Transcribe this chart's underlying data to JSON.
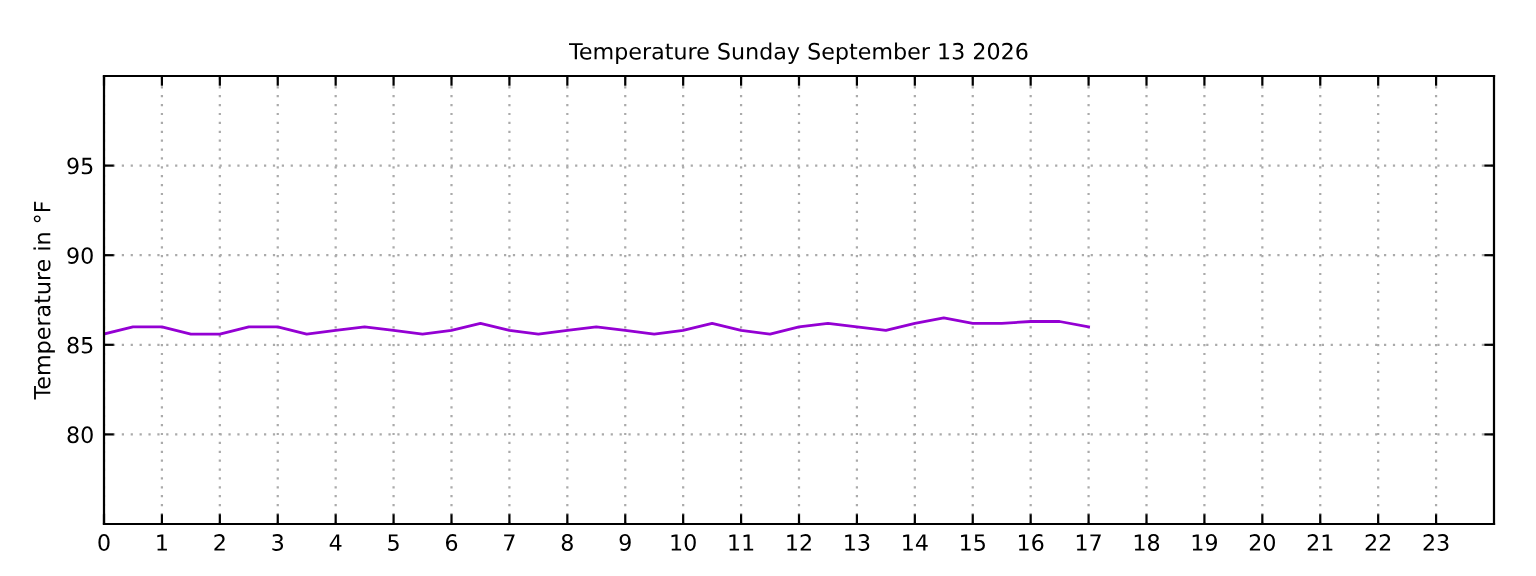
{
  "chart_data": {
    "type": "line",
    "title": "Temperature Sunday September 13 2026",
    "ylabel": "Temperature in °F",
    "x": [
      0,
      0.5,
      1,
      1.5,
      2,
      2.5,
      3,
      3.5,
      4,
      4.5,
      5,
      5.5,
      6,
      6.5,
      7,
      7.5,
      8,
      8.5,
      9,
      9.5,
      10,
      10.5,
      11,
      11.5,
      12,
      12.5,
      13,
      13.5,
      14,
      14.5,
      15,
      15.5,
      16,
      16.5,
      17
    ],
    "series": [
      {
        "color": "#9400d3",
        "values": [
          85.6,
          86.0,
          86.0,
          85.6,
          85.6,
          86.0,
          86.0,
          85.6,
          85.8,
          86.0,
          85.8,
          85.6,
          85.8,
          86.2,
          85.8,
          85.6,
          85.8,
          86.0,
          85.8,
          85.6,
          85.8,
          86.2,
          85.8,
          85.6,
          86.0,
          86.2,
          86.0,
          85.8,
          86.2,
          86.5,
          86.2,
          86.2,
          86.3,
          86.3,
          86.0
        ]
      }
    ],
    "xlim": [
      0,
      24
    ],
    "xticks": [
      0,
      1,
      2,
      3,
      4,
      5,
      6,
      7,
      8,
      9,
      10,
      11,
      12,
      13,
      14,
      15,
      16,
      17,
      18,
      19,
      20,
      21,
      22,
      23
    ],
    "ylim": [
      75,
      100
    ],
    "yticks": [
      80,
      85,
      90,
      95
    ],
    "grid": true,
    "legend": false
  }
}
